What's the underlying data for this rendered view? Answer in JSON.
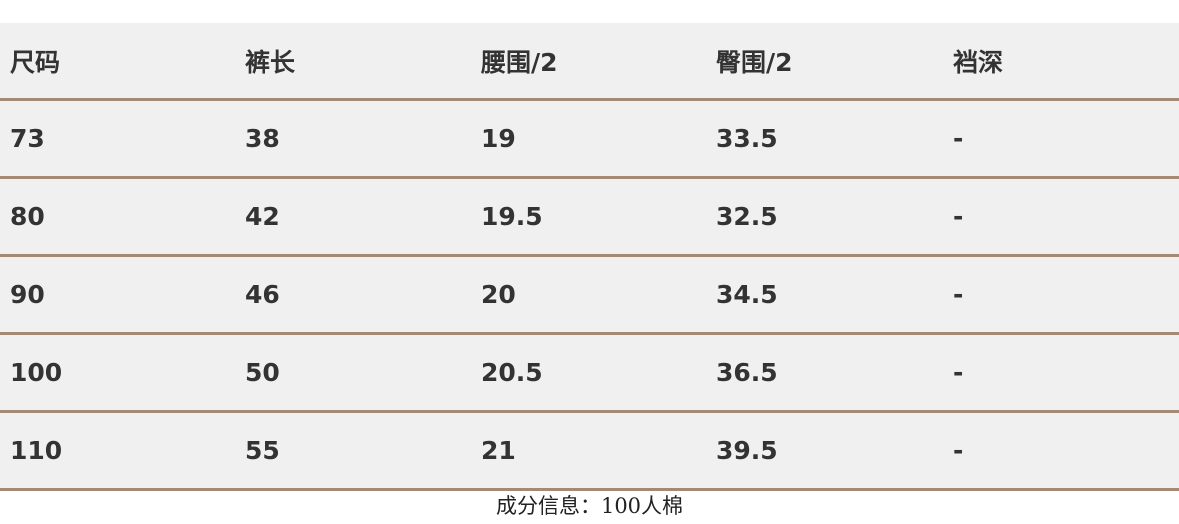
{
  "table": {
    "headers": [
      "尺码",
      "裤长",
      "腰围/2",
      "臀围/2",
      "裆深"
    ],
    "rows": [
      [
        "73",
        "38",
        "19",
        "33.5",
        "-"
      ],
      [
        "80",
        "42",
        "19.5",
        "32.5",
        "-"
      ],
      [
        "90",
        "46",
        "20",
        "34.5",
        "-"
      ],
      [
        "100",
        "50",
        "20.5",
        "36.5",
        "-"
      ],
      [
        "110",
        "55",
        "21",
        "39.5",
        "-"
      ]
    ]
  },
  "footer": "成分信息：100人棉",
  "colors": {
    "row_bg": "#f1f0f0",
    "divider": "#a48a72",
    "text": "#333333"
  }
}
